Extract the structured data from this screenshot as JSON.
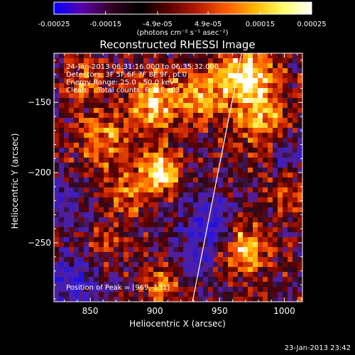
{
  "window": {
    "timestamp": "23-Jan-2013 23:42"
  },
  "colorbar": {
    "tick_labels": [
      "-0.00025",
      "-0.00015",
      "-4.9e-05",
      "4.9e-05",
      "0.00015",
      "0.00025"
    ],
    "tick_values": [
      -0.00025,
      -0.00015,
      -4.9e-05,
      4.9e-05,
      0.00015,
      0.00025
    ],
    "range": [
      -0.00025,
      0.00025
    ],
    "unit_label": "(photons cm⁻² s⁻¹ asec⁻²)",
    "colors": [
      "#0000ff",
      "#5a00aa",
      "#330022",
      "#000000",
      "#5a0000",
      "#b31a00",
      "#ff5a00",
      "#ffb400",
      "#ffff66",
      "#ffffff"
    ]
  },
  "chart_data": {
    "type": "heatmap",
    "title": "Reconstructed RHESSI Image",
    "xlabel": "Heliocentric X (arcsec)",
    "ylabel": "Heliocentric Y (arcsec)",
    "xlim": [
      822,
      1014
    ],
    "ylim": [
      -292,
      -115
    ],
    "x_ticks": [
      850,
      900,
      950,
      1000
    ],
    "y_ticks": [
      -250,
      -200,
      -150
    ],
    "info_lines": [
      "24-Jan-2013 06:31:16.000 to 06:35:32.000",
      "Detectors: 3F 5F 6F 7F 8F 9F, pt 0",
      "Energy Range: 25.0 - 50.0 keV",
      "Clean     Total counts: 6.71E+03"
    ],
    "peak_label": "Position of Peak = [969,-131]",
    "peak": [
      969,
      -131
    ],
    "limb_line": [
      [
        929,
        -292
      ],
      [
        967,
        -115
      ]
    ],
    "hot_sources": [
      {
        "x": 969,
        "y": -131,
        "r": 14,
        "amp": 1.0
      },
      {
        "x": 900,
        "y": -150,
        "r": 14,
        "amp": 0.75
      },
      {
        "x": 935,
        "y": -145,
        "r": 12,
        "amp": 0.6
      },
      {
        "x": 985,
        "y": -165,
        "r": 16,
        "amp": 0.65
      },
      {
        "x": 903,
        "y": -200,
        "r": 10,
        "amp": 0.95
      },
      {
        "x": 860,
        "y": -175,
        "r": 14,
        "amp": 0.55
      },
      {
        "x": 880,
        "y": -215,
        "r": 12,
        "amp": 0.45
      },
      {
        "x": 970,
        "y": -255,
        "r": 12,
        "amp": 0.75
      },
      {
        "x": 905,
        "y": -280,
        "r": 10,
        "amp": 0.5
      },
      {
        "x": 845,
        "y": -135,
        "r": 10,
        "amp": 0.45
      },
      {
        "x": 1000,
        "y": -215,
        "r": 10,
        "amp": 0.35
      },
      {
        "x": 860,
        "y": -250,
        "r": 10,
        "amp": 0.3
      }
    ],
    "cold_sources": [
      {
        "x": 940,
        "y": -235,
        "r": 14,
        "amp": 0.55
      },
      {
        "x": 835,
        "y": -280,
        "r": 16,
        "amp": 0.5
      },
      {
        "x": 1000,
        "y": -180,
        "r": 14,
        "amp": 0.4
      },
      {
        "x": 930,
        "y": -265,
        "r": 10,
        "amp": 0.35
      },
      {
        "x": 830,
        "y": -220,
        "r": 10,
        "amp": 0.35
      }
    ],
    "grid": false
  }
}
